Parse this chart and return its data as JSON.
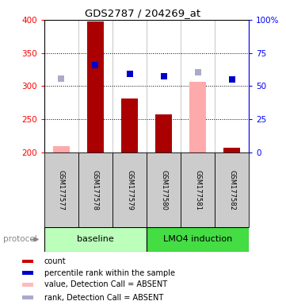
{
  "title": "GDS2787 / 204269_at",
  "samples": [
    "GSM177577",
    "GSM177578",
    "GSM177579",
    "GSM177580",
    "GSM177581",
    "GSM177582"
  ],
  "ylim_left": [
    200,
    400
  ],
  "ylim_right": [
    0,
    100
  ],
  "yticks_left": [
    200,
    250,
    300,
    350,
    400
  ],
  "yticks_right": [
    0,
    25,
    50,
    75,
    100
  ],
  "ytick_labels_right": [
    "0",
    "25",
    "50",
    "75",
    "100%"
  ],
  "bars_value": [
    210,
    397,
    282,
    258,
    307,
    207
  ],
  "bars_absent": [
    true,
    false,
    false,
    false,
    true,
    false
  ],
  "bar_color_present": "#aa0000",
  "bar_color_absent": "#ffaaaa",
  "rank_values": [
    311,
    332,
    319,
    315,
    321,
    310
  ],
  "rank_absent": [
    true,
    false,
    false,
    false,
    true,
    false
  ],
  "rank_color_present": "#0000cc",
  "rank_color_absent": "#aaaacc",
  "baseline_color": "#bbffbb",
  "lmo4_color": "#44dd44",
  "protocol_label": "protocol",
  "baseline_label": "baseline",
  "lmo4_label": "LMO4 induction",
  "legend_items": [
    {
      "color": "#cc0000",
      "label": "count"
    },
    {
      "color": "#0000cc",
      "label": "percentile rank within the sample"
    },
    {
      "color": "#ffbbbb",
      "label": "value, Detection Call = ABSENT"
    },
    {
      "color": "#aaaacc",
      "label": "rank, Detection Call = ABSENT"
    }
  ],
  "bg_sample_boxes": "#cccccc",
  "bar_base": 200,
  "bar_width": 0.5
}
